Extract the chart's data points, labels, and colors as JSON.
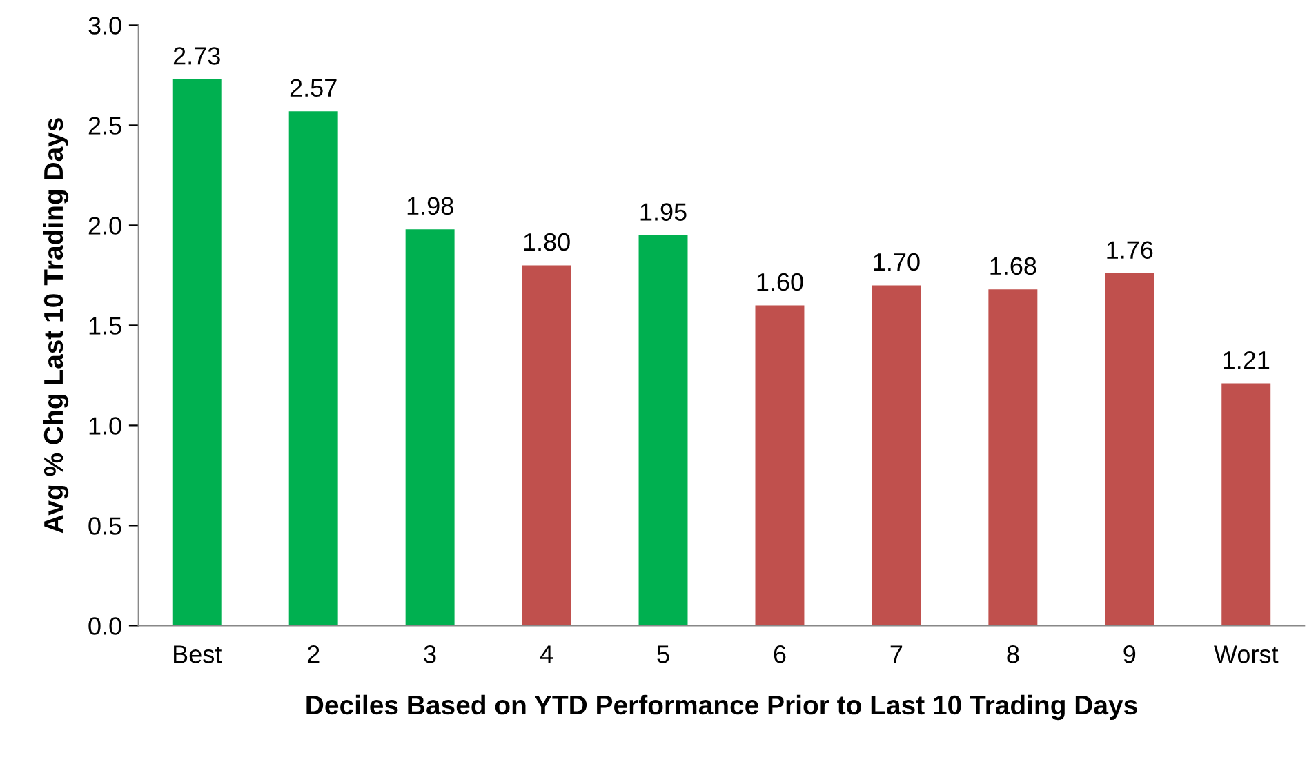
{
  "chart_data": {
    "type": "bar",
    "xlabel": "Deciles Based on YTD Performance Prior to Last 10 Trading Days",
    "ylabel": "Avg % Chg Last 10 Trading Days",
    "categories": [
      "Best",
      "2",
      "3",
      "4",
      "5",
      "6",
      "7",
      "8",
      "9",
      "Worst"
    ],
    "values": [
      2.73,
      2.57,
      1.98,
      1.8,
      1.95,
      1.6,
      1.7,
      1.68,
      1.76,
      1.21
    ],
    "value_labels": [
      "2.73",
      "2.57",
      "1.98",
      "1.80",
      "1.95",
      "1.60",
      "1.70",
      "1.68",
      "1.76",
      "1.21"
    ],
    "colors": [
      "#00b050",
      "#00b050",
      "#00b050",
      "#c0504d",
      "#00b050",
      "#c0504d",
      "#c0504d",
      "#c0504d",
      "#c0504d",
      "#c0504d"
    ],
    "ylim": [
      0,
      3.0
    ],
    "yticks": [
      {
        "value": 0,
        "label": "0.0"
      },
      {
        "value": 0.5,
        "label": "0.5"
      },
      {
        "value": 1.0,
        "label": "1.0"
      },
      {
        "value": 1.5,
        "label": "1.5"
      },
      {
        "value": 2.0,
        "label": "2.0"
      },
      {
        "value": 2.5,
        "label": "2.5"
      },
      {
        "value": 3.0,
        "label": "3.0"
      }
    ],
    "grid": false
  }
}
